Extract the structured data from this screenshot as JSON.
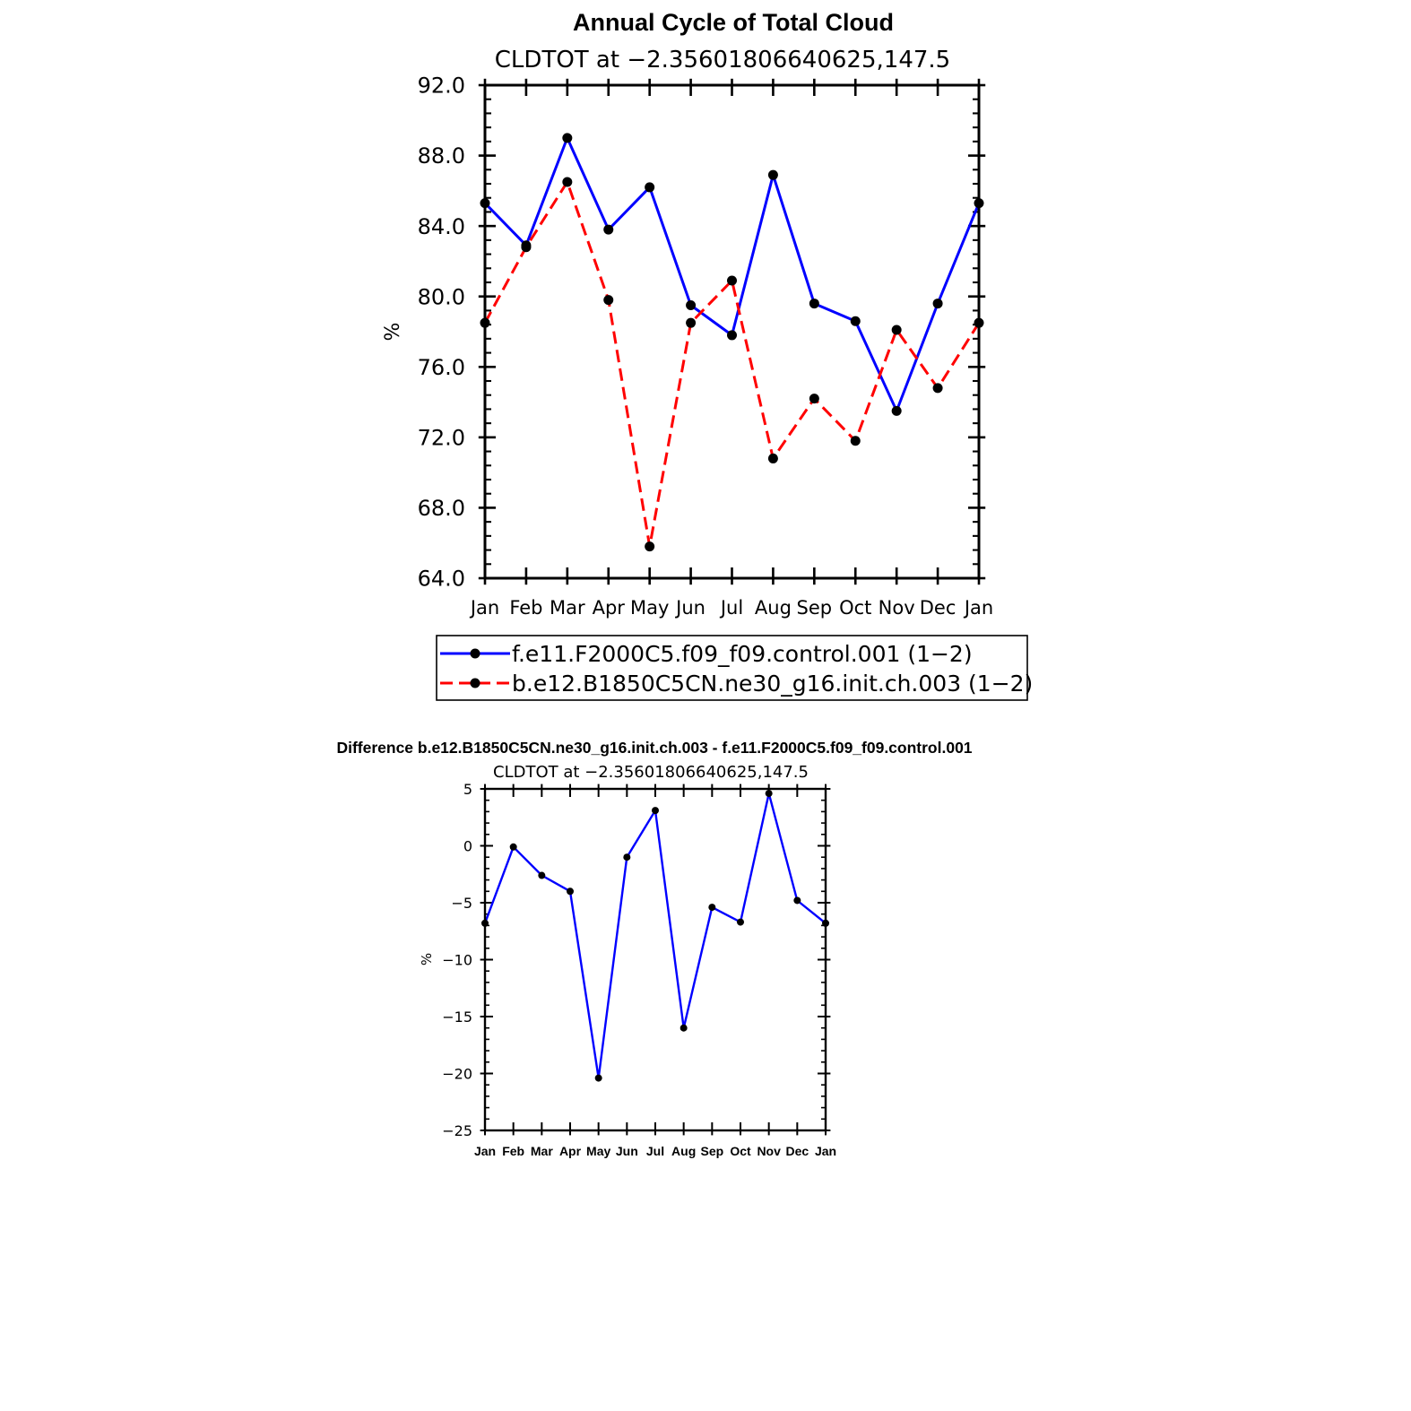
{
  "chart_data": [
    {
      "type": "line",
      "title": "Annual Cycle of Total Cloud",
      "subtitle": "CLDTOT at −2.35601806640625,147.5",
      "ylabel": "%",
      "xlabel": "",
      "ylim": [
        64.0,
        92.0
      ],
      "yticks": [
        "64.0",
        "68.0",
        "72.0",
        "76.0",
        "80.0",
        "84.0",
        "88.0",
        "92.0"
      ],
      "categories": [
        "Jan",
        "Feb",
        "Mar",
        "Apr",
        "May",
        "Jun",
        "Jul",
        "Aug",
        "Sep",
        "Oct",
        "Nov",
        "Dec",
        "Jan"
      ],
      "series": [
        {
          "name": "f.e11.F2000C5.f09_f09.control.001 (1−2)",
          "color": "#0000ff",
          "dash": "solid",
          "values": [
            85.3,
            82.9,
            89.0,
            83.8,
            86.2,
            79.5,
            77.8,
            86.9,
            79.6,
            78.6,
            73.5,
            79.6,
            85.3
          ]
        },
        {
          "name": "b.e12.B1850C5CN.ne30_g16.init.ch.003 (1−2)",
          "color": "#ff0000",
          "dash": "dashed",
          "values": [
            78.5,
            82.8,
            86.5,
            79.8,
            65.8,
            78.5,
            80.9,
            70.8,
            74.2,
            71.8,
            78.1,
            74.8,
            78.5
          ]
        }
      ]
    },
    {
      "type": "line",
      "title": "Difference b.e12.B1850C5CN.ne30_g16.init.ch.003 - f.e11.F2000C5.f09_f09.control.001",
      "subtitle": "CLDTOT at −2.35601806640625,147.5",
      "ylabel": "%",
      "xlabel": "",
      "ylim": [
        -25,
        5
      ],
      "yticks": [
        "−25",
        "−20",
        "−15",
        "−10",
        "−5",
        "0",
        "5"
      ],
      "categories": [
        "Jan",
        "Feb",
        "Mar",
        "Apr",
        "May",
        "Jun",
        "Jul",
        "Aug",
        "Sep",
        "Oct",
        "Nov",
        "Dec",
        "Jan"
      ],
      "series": [
        {
          "name": "difference",
          "color": "#0000ff",
          "values": [
            -6.8,
            -0.1,
            -2.6,
            -4.0,
            -20.4,
            -1.0,
            3.1,
            -16.0,
            -5.4,
            -6.7,
            4.6,
            -4.8,
            -6.8
          ]
        }
      ]
    }
  ]
}
